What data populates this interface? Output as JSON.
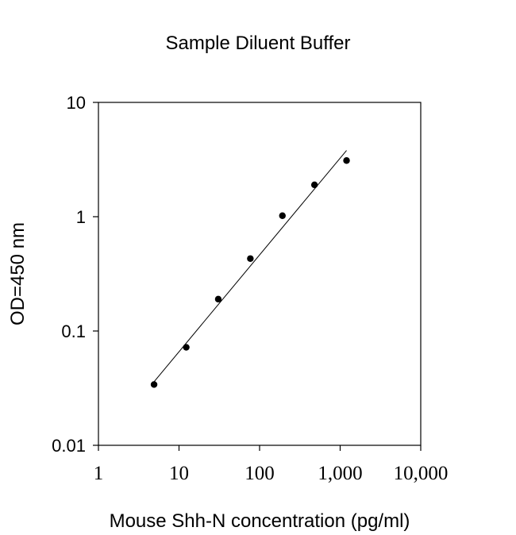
{
  "chart_data": {
    "type": "scatter",
    "title": "Sample Diluent Buffer",
    "xlabel": "Mouse Shh-N concentration (pg/ml)",
    "ylabel": "OD=450 nm",
    "x_scale": "log",
    "y_scale": "log",
    "xlim": [
      1,
      10000
    ],
    "ylim": [
      0.01,
      10
    ],
    "x_ticks": [
      1,
      10,
      100,
      1000,
      10000
    ],
    "x_tick_labels": [
      "1",
      "10",
      "100",
      "1,000",
      "10,000"
    ],
    "y_ticks": [
      0.01,
      0.1,
      1,
      10
    ],
    "y_tick_labels": [
      "0.01",
      "0.1",
      "1",
      "10"
    ],
    "grid": false,
    "series": [
      {
        "x": [
          4.9,
          12.3,
          30.7,
          76.8,
          192,
          480,
          1200
        ],
        "y": [
          0.034,
          0.072,
          0.19,
          0.43,
          1.02,
          1.9,
          3.1
        ]
      }
    ],
    "fit_line": {
      "x": [
        4.9,
        1200
      ],
      "y": [
        0.036,
        3.8
      ]
    }
  }
}
